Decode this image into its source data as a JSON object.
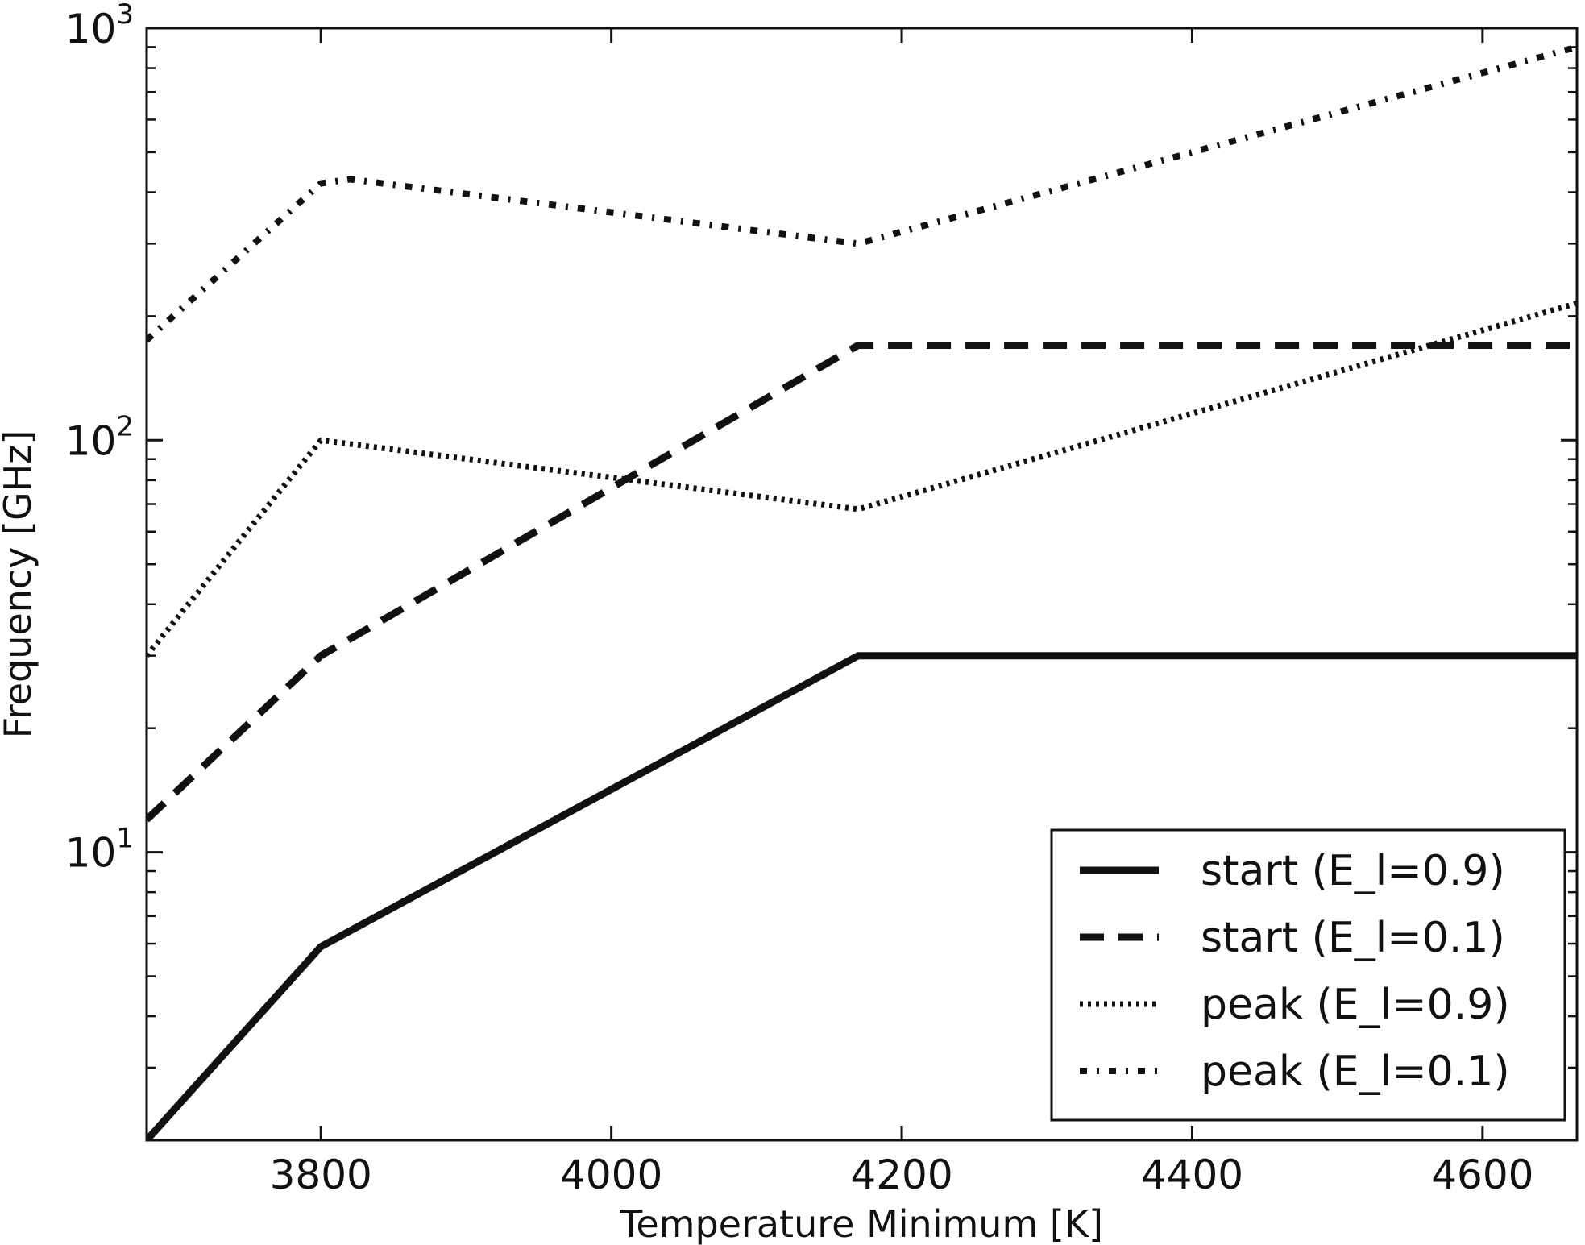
{
  "chart_data": {
    "type": "line",
    "xlabel": "Temperature Minimum [K]",
    "ylabel": "Frequency [GHz]",
    "xlim": [
      3680,
      4665
    ],
    "ylim": [
      2,
      1000
    ],
    "yscale": "log",
    "grid": false,
    "legend_position": "bottom-right",
    "x_ticks": [
      3800,
      4000,
      4200,
      4400,
      4600
    ],
    "x_tick_labels": [
      "3800",
      "4000",
      "4200",
      "4400",
      "4600"
    ],
    "y_major_ticks": [
      {
        "value": 10,
        "base": "10",
        "exp": "1"
      },
      {
        "value": 100,
        "base": "10",
        "exp": "2"
      },
      {
        "value": 1000,
        "base": "10",
        "exp": "3"
      }
    ],
    "y_minor_ticks": [
      3,
      4,
      5,
      6,
      7,
      8,
      9,
      20,
      30,
      40,
      50,
      60,
      70,
      80,
      90,
      200,
      300,
      400,
      500,
      600,
      700,
      800,
      900
    ],
    "series": [
      {
        "name": "start (E_l=0.9)",
        "style": "solid",
        "x": [
          3680,
          3800,
          4170,
          4665
        ],
        "y": [
          2.0,
          5.9,
          30,
          30
        ]
      },
      {
        "name": "start (E_l=0.1)",
        "style": "dashed",
        "x": [
          3680,
          3800,
          4170,
          4665
        ],
        "y": [
          12,
          30,
          170,
          170
        ]
      },
      {
        "name": "peak (E_l=0.9)",
        "style": "dotted",
        "x": [
          3680,
          3800,
          4170,
          4665
        ],
        "y": [
          30,
          100,
          68,
          215
        ]
      },
      {
        "name": "peak (E_l=0.1)",
        "style": "dashdot",
        "x": [
          3680,
          3800,
          3820,
          4170,
          4665
        ],
        "y": [
          175,
          420,
          430,
          300,
          900
        ]
      }
    ]
  }
}
